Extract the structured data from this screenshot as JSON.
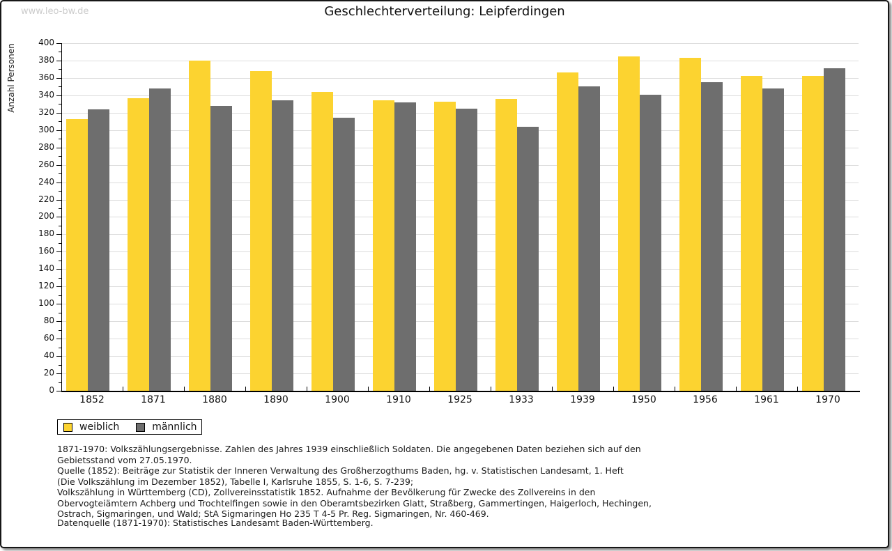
{
  "page": {
    "watermark": "www.leo-bw.de"
  },
  "chart_data": {
    "type": "bar",
    "title": "Geschlechterverteilung: Leipferdingen",
    "xlabel": "",
    "ylabel": "Anzahl Personen",
    "ylim": [
      0,
      400
    ],
    "ytick_major_step": 20,
    "ytick_minor_step": 10,
    "grid": true,
    "legend_position": "bottom-left",
    "categories": [
      "1852",
      "1871",
      "1880",
      "1890",
      "1900",
      "1910",
      "1925",
      "1933",
      "1939",
      "1950",
      "1956",
      "1961",
      "1970"
    ],
    "series": [
      {
        "name": "weiblich",
        "color": "#FCD330",
        "values": [
          313,
          337,
          380,
          368,
          344,
          334,
          333,
          336,
          366,
          385,
          383,
          362,
          362
        ]
      },
      {
        "name": "männlich",
        "color": "#6E6E6E",
        "values": [
          324,
          348,
          328,
          334,
          314,
          332,
          325,
          304,
          350,
          341,
          355,
          348,
          371
        ]
      }
    ]
  },
  "colors": {
    "gridline": "#dcdcdc",
    "axis": "#000000",
    "watermark": "#cbcbcb"
  },
  "footer": {
    "lines": [
      "1871-1970: Volkszählungsergebnisse. Zahlen des Jahres 1939 einschließlich Soldaten. Die angegebenen Daten beziehen sich auf den",
      "Gebietsstand vom 27.05.1970.",
      "Quelle (1852): Beiträge zur Statistik der Inneren Verwaltung des Großherzogthums Baden, hg. v. Statistischen Landesamt, 1. Heft",
      "(Die Volkszählung im Dezember 1852), Tabelle I, Karlsruhe 1855, S. 1-6, S. 7-239;",
      "Volkszählung in Württemberg (CD), Zollvereinsstatistik 1852. Aufnahme der Bevölkerung für Zwecke des Zollvereins in den",
      "Obervogteiämtern Achberg und Trochtelfingen sowie in den Oberamtsbezirken Glatt, Straßberg, Gammertingen, Haigerloch, Hechingen,",
      "Ostrach, Sigmaringen, und Wald; StA Sigmaringen Ho 235 T 4-5 Pr. Reg. Sigmaringen, Nr. 460-469."
    ],
    "datasource": "Datenquelle (1871-1970): Statistisches Landesamt Baden-Württemberg."
  }
}
